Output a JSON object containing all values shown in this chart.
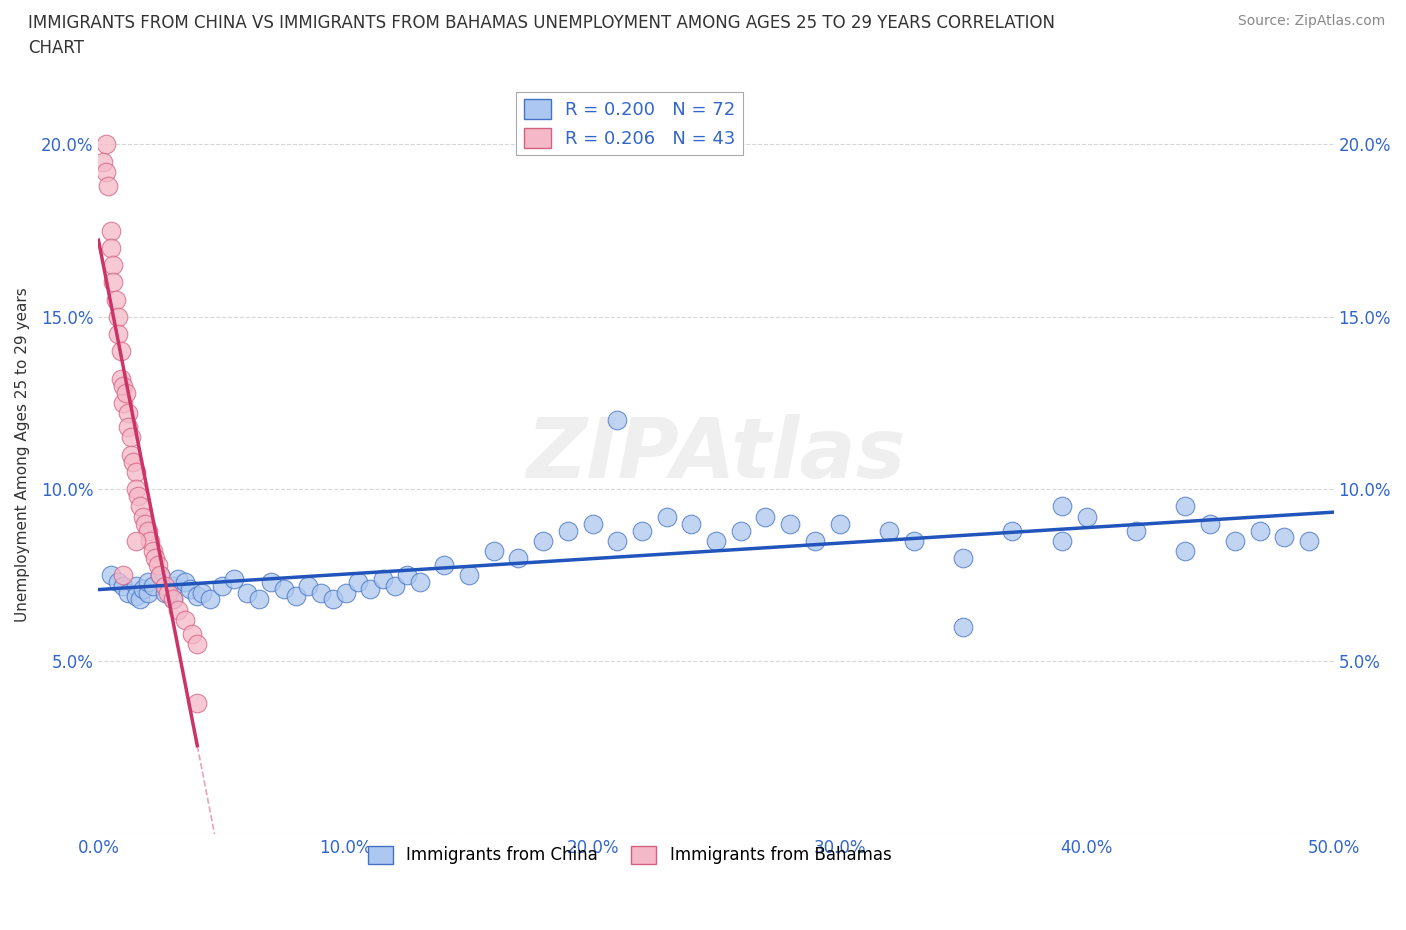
{
  "title_line1": "IMMIGRANTS FROM CHINA VS IMMIGRANTS FROM BAHAMAS UNEMPLOYMENT AMONG AGES 25 TO 29 YEARS CORRELATION",
  "title_line2": "CHART",
  "source_text": "Source: ZipAtlas.com",
  "ylabel": "Unemployment Among Ages 25 to 29 years",
  "xlim": [
    0,
    0.5
  ],
  "ylim": [
    0,
    0.22
  ],
  "xticks": [
    0.0,
    0.1,
    0.2,
    0.3,
    0.4,
    0.5
  ],
  "xticklabels": [
    "0.0%",
    "10.0%",
    "20.0%",
    "30.0%",
    "40.0%",
    "50.0%"
  ],
  "yticks": [
    0.0,
    0.05,
    0.1,
    0.15,
    0.2
  ],
  "yticklabels": [
    "",
    "5.0%",
    "10.0%",
    "15.0%",
    "20.0%"
  ],
  "china_R": 0.2,
  "china_N": 72,
  "bahamas_R": 0.206,
  "bahamas_N": 43,
  "china_color": "#adc8f0",
  "china_edge_color": "#4472c4",
  "china_line_color": "#2255bb",
  "bahamas_color": "#f5b8c8",
  "bahamas_edge_color": "#d46080",
  "bahamas_line_color": "#cc3366",
  "watermark_text": "ZIPAtlas",
  "legend_labels": [
    "Immigrants from China",
    "Immigrants from Bahamas"
  ],
  "background_color": "#ffffff",
  "grid_color": "#cccccc",
  "china_scatter_x": [
    0.005,
    0.008,
    0.01,
    0.012,
    0.015,
    0.015,
    0.017,
    0.018,
    0.02,
    0.02,
    0.022,
    0.025,
    0.027,
    0.03,
    0.03,
    0.032,
    0.035,
    0.037,
    0.04,
    0.042,
    0.045,
    0.05,
    0.055,
    0.06,
    0.065,
    0.07,
    0.075,
    0.08,
    0.085,
    0.09,
    0.095,
    0.1,
    0.105,
    0.11,
    0.115,
    0.12,
    0.125,
    0.13,
    0.14,
    0.15,
    0.16,
    0.17,
    0.18,
    0.19,
    0.2,
    0.21,
    0.22,
    0.23,
    0.24,
    0.25,
    0.26,
    0.27,
    0.28,
    0.29,
    0.3,
    0.32,
    0.33,
    0.35,
    0.37,
    0.39,
    0.4,
    0.42,
    0.44,
    0.45,
    0.46,
    0.47,
    0.48,
    0.49,
    0.44,
    0.35,
    0.21,
    0.39
  ],
  "china_scatter_y": [
    0.075,
    0.073,
    0.072,
    0.07,
    0.072,
    0.069,
    0.068,
    0.071,
    0.07,
    0.073,
    0.072,
    0.075,
    0.07,
    0.068,
    0.072,
    0.074,
    0.073,
    0.071,
    0.069,
    0.07,
    0.068,
    0.072,
    0.074,
    0.07,
    0.068,
    0.073,
    0.071,
    0.069,
    0.072,
    0.07,
    0.068,
    0.07,
    0.073,
    0.071,
    0.074,
    0.072,
    0.075,
    0.073,
    0.078,
    0.075,
    0.082,
    0.08,
    0.085,
    0.088,
    0.09,
    0.085,
    0.088,
    0.092,
    0.09,
    0.085,
    0.088,
    0.092,
    0.09,
    0.085,
    0.09,
    0.088,
    0.085,
    0.08,
    0.088,
    0.085,
    0.092,
    0.088,
    0.082,
    0.09,
    0.085,
    0.088,
    0.086,
    0.085,
    0.095,
    0.06,
    0.12,
    0.095
  ],
  "bahamas_scatter_x": [
    0.002,
    0.003,
    0.003,
    0.004,
    0.005,
    0.005,
    0.006,
    0.006,
    0.007,
    0.008,
    0.008,
    0.009,
    0.009,
    0.01,
    0.01,
    0.011,
    0.012,
    0.012,
    0.013,
    0.013,
    0.014,
    0.015,
    0.015,
    0.016,
    0.017,
    0.018,
    0.019,
    0.02,
    0.021,
    0.022,
    0.023,
    0.024,
    0.025,
    0.027,
    0.028,
    0.03,
    0.032,
    0.035,
    0.038,
    0.04,
    0.01,
    0.015,
    0.04
  ],
  "bahamas_scatter_y": [
    0.195,
    0.2,
    0.192,
    0.188,
    0.175,
    0.17,
    0.165,
    0.16,
    0.155,
    0.15,
    0.145,
    0.14,
    0.132,
    0.13,
    0.125,
    0.128,
    0.122,
    0.118,
    0.115,
    0.11,
    0.108,
    0.105,
    0.1,
    0.098,
    0.095,
    0.092,
    0.09,
    0.088,
    0.085,
    0.082,
    0.08,
    0.078,
    0.075,
    0.072,
    0.07,
    0.068,
    0.065,
    0.062,
    0.058,
    0.055,
    0.075,
    0.085,
    0.038
  ]
}
